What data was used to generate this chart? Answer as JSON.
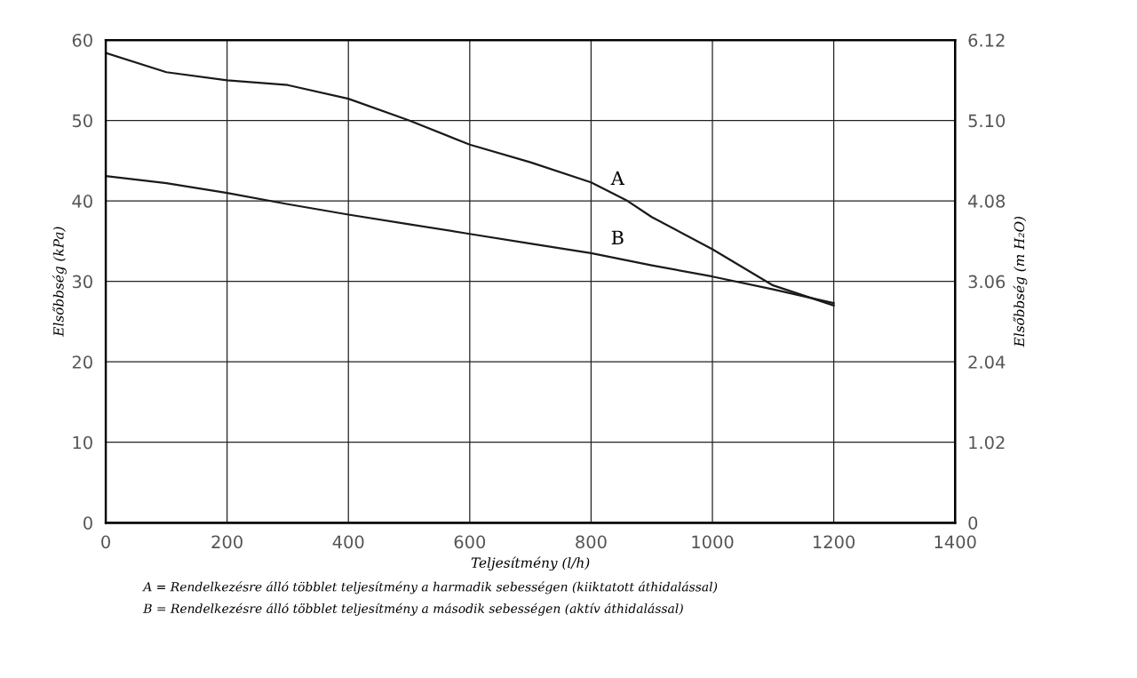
{
  "chart_data": {
    "type": "line",
    "xlabel": "Teljesítmény (l/h)",
    "ylabel": "Elsőbbség (kPa)",
    "y2label": "Elsőbbség (m H₂O)",
    "xlim": [
      0,
      1400
    ],
    "xticks": [
      0,
      200,
      400,
      600,
      800,
      1000,
      1200,
      1400
    ],
    "ylim": [
      0,
      60
    ],
    "yticks": [
      0,
      10,
      20,
      30,
      40,
      50,
      60
    ],
    "y2lim": [
      0,
      6.12
    ],
    "y2ticks": [
      0,
      1.02,
      2.04,
      3.06,
      4.08,
      {
        "value": 5.1,
        "label": "5.10"
      },
      6.12
    ],
    "grid": true,
    "legend": false,
    "marker": "none",
    "line_style": "solid",
    "x": [
      0,
      100,
      200,
      300,
      400,
      500,
      600,
      700,
      800,
      860,
      900,
      1000,
      1100,
      1200
    ],
    "series": [
      {
        "name": "A",
        "color": "#1a1a1a",
        "values": [
          58.4,
          56,
          55,
          54.4,
          52.7,
          50,
          47,
          44.8,
          42.3,
          40,
          38,
          34,
          29.5,
          27
        ]
      },
      {
        "name": "B",
        "color": "#1a1a1a",
        "values": [
          43.1,
          42.2,
          41,
          39.6,
          38.3,
          37.1,
          35.9,
          34.7,
          33.5,
          32.6,
          32,
          30.6,
          29,
          27.3
        ]
      }
    ],
    "annotations": [
      "A = Rendelkezésre álló többlet teljesítmény a harmadik sebességen (kiiktatott áthidalással)",
      "B = Rendelkezésre álló többlet teljesítmény a második sebességen (aktív áthidalással)"
    ]
  }
}
